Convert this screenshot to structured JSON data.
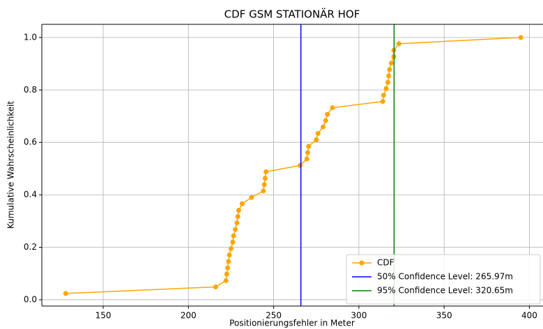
{
  "chart_data": {
    "type": "line",
    "title": "CDF GSM STATIONÄR HOF",
    "xlabel": "Positionierungsfehler in Meter",
    "ylabel": "Kumulative Wahrscheinlichkeit",
    "xlim": [
      114,
      408
    ],
    "ylim": [
      -0.024,
      1.05
    ],
    "xticks": [
      150,
      200,
      250,
      300,
      350,
      400
    ],
    "yticks": [
      {
        "value": 0,
        "label": "0.0"
      },
      {
        "value": 0.2,
        "label": "0.2"
      },
      {
        "value": 0.4,
        "label": "0.4"
      },
      {
        "value": 0.6,
        "label": "0.6"
      },
      {
        "value": 0.8,
        "label": "0.8"
      },
      {
        "value": 1,
        "label": "1.0"
      }
    ],
    "grid": true,
    "legend": "lower right",
    "series": [
      {
        "name": "CDF",
        "color": "#ffa500",
        "x": [
          128,
          216,
          222,
          222.5,
          223,
          223.5,
          224,
          225,
          226,
          226.5,
          227.5,
          228.5,
          229,
          229.5,
          231.5,
          237,
          244,
          244.5,
          245,
          245.5,
          265.5,
          269.5,
          270,
          270.5,
          275,
          276,
          279,
          280.5,
          281.5,
          284.5,
          314,
          314.5,
          316,
          317,
          317.5,
          318,
          319,
          320.5,
          320.5,
          323.5,
          395
        ],
        "values": [
          0.024,
          0.049,
          0.073,
          0.098,
          0.122,
          0.146,
          0.171,
          0.195,
          0.22,
          0.244,
          0.268,
          0.293,
          0.317,
          0.341,
          0.366,
          0.39,
          0.415,
          0.439,
          0.463,
          0.488,
          0.512,
          0.537,
          0.561,
          0.585,
          0.61,
          0.634,
          0.659,
          0.683,
          0.707,
          0.732,
          0.756,
          0.78,
          0.805,
          0.829,
          0.854,
          0.878,
          0.902,
          0.927,
          0.951,
          0.976,
          1.0
        ]
      }
    ],
    "reference_lines": [
      {
        "name": "50% Confidence Level: 265.97m",
        "color": "#0000ff",
        "x": 265.97
      },
      {
        "name": "95% Confidence Level: 320.65m",
        "color": "#008000",
        "x": 320.65
      }
    ]
  }
}
